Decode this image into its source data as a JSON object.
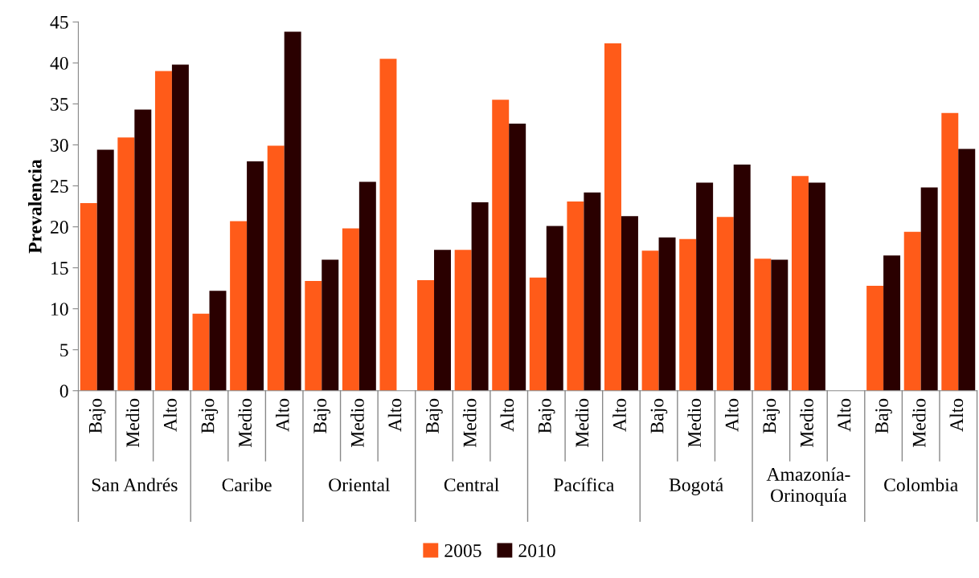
{
  "chart_data": {
    "type": "bar",
    "ylabel": "Prevalencia",
    "categories": [
      "Bajo",
      "Medio",
      "Alto",
      "Bajo",
      "Medio",
      "Alto",
      "Bajo",
      "Medio",
      "Alto",
      "Bajo",
      "Medio",
      "Alto",
      "Bajo",
      "Medio",
      "Alto",
      "Bajo",
      "Medio",
      "Alto",
      "Bajo",
      "Medio",
      "Alto",
      "Bajo",
      "Medio",
      "Alto"
    ],
    "annotations": [
      "San Andrés",
      "Caribe",
      "Oriental",
      "Central",
      "Pacífica",
      "Bogotá",
      "Amazonía-\nOrinoquía",
      "Colombia"
    ],
    "series": [
      {
        "name": "2005",
        "color": "#ff5b19",
        "values": [
          22.9,
          30.9,
          39.0,
          9.4,
          20.7,
          29.9,
          13.4,
          19.8,
          40.5,
          13.5,
          17.2,
          35.5,
          13.8,
          23.1,
          42.4,
          17.1,
          18.5,
          21.2,
          16.1,
          26.2,
          null,
          12.8,
          19.4,
          33.9
        ]
      },
      {
        "name": "2010",
        "color": "#2a0000",
        "values": [
          29.4,
          34.3,
          39.8,
          12.2,
          28.0,
          43.8,
          16.0,
          25.5,
          null,
          17.2,
          23.0,
          32.6,
          20.1,
          24.2,
          21.3,
          18.7,
          25.4,
          27.6,
          16.0,
          25.4,
          null,
          16.5,
          24.8,
          29.5
        ]
      }
    ],
    "ylim": [
      0,
      45
    ],
    "yticks": [
      0,
      5,
      10,
      15,
      20,
      25,
      30,
      35,
      40,
      45
    ],
    "grid": false,
    "legend": "bottom"
  }
}
